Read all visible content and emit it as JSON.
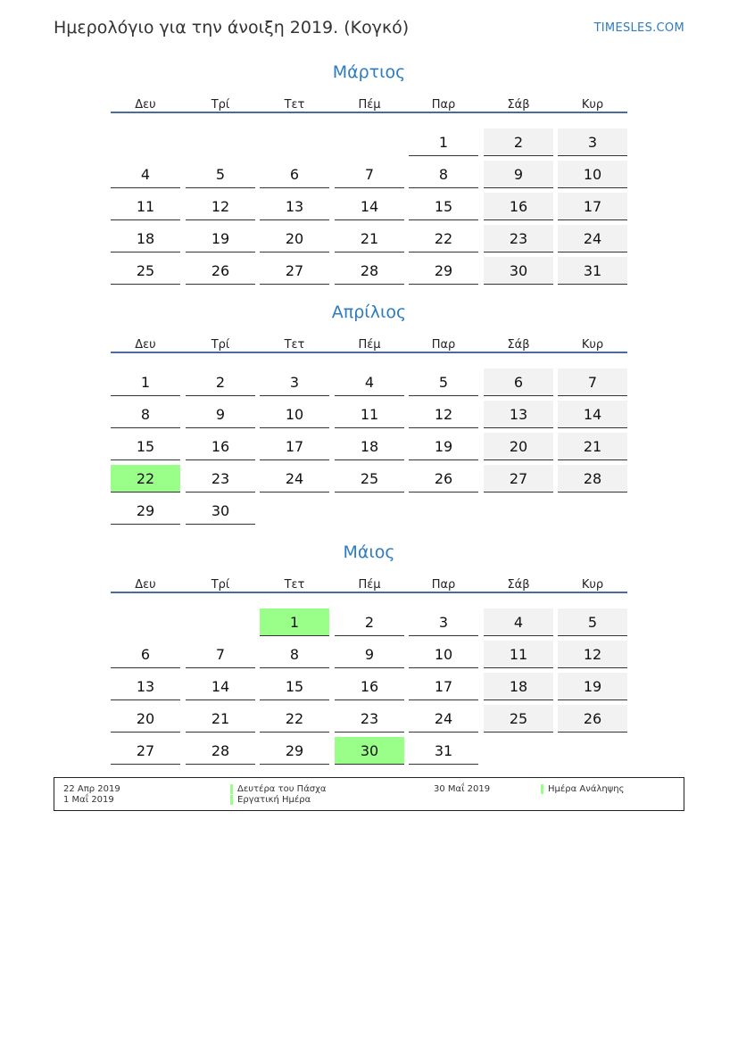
{
  "title": "Ημερολόγιο για την άνοιξη 2019. (Κογκό)",
  "site": "TIMESLES.COM",
  "weekdays": [
    "Δευ",
    "Τρί",
    "Τετ",
    "Πέμ",
    "Παρ",
    "Σάβ",
    "Κυρ"
  ],
  "colors": {
    "accent": "#2e7bbf",
    "weekend": "#f2f2f2",
    "holiday": "#99ff88"
  },
  "months": [
    {
      "name": "Μάρτιος",
      "weeks": [
        [
          null,
          null,
          null,
          null,
          1,
          2,
          3
        ],
        [
          4,
          5,
          6,
          7,
          8,
          9,
          10
        ],
        [
          11,
          12,
          13,
          14,
          15,
          16,
          17
        ],
        [
          18,
          19,
          20,
          21,
          22,
          23,
          24
        ],
        [
          25,
          26,
          27,
          28,
          29,
          30,
          31
        ]
      ],
      "holidays": []
    },
    {
      "name": "Απρίλιος",
      "weeks": [
        [
          1,
          2,
          3,
          4,
          5,
          6,
          7
        ],
        [
          8,
          9,
          10,
          11,
          12,
          13,
          14
        ],
        [
          15,
          16,
          17,
          18,
          19,
          20,
          21
        ],
        [
          22,
          23,
          24,
          25,
          26,
          27,
          28
        ],
        [
          29,
          30,
          null,
          null,
          null,
          null,
          null
        ]
      ],
      "holidays": [
        22
      ]
    },
    {
      "name": "Μάιος",
      "weeks": [
        [
          null,
          null,
          1,
          2,
          3,
          4,
          5
        ],
        [
          6,
          7,
          8,
          9,
          10,
          11,
          12
        ],
        [
          13,
          14,
          15,
          16,
          17,
          18,
          19
        ],
        [
          20,
          21,
          22,
          23,
          24,
          25,
          26
        ],
        [
          27,
          28,
          29,
          30,
          31,
          null,
          null
        ]
      ],
      "holidays": [
        1,
        30
      ]
    }
  ],
  "legend": [
    {
      "date": "22 Απρ 2019",
      "name": "Δευτέρα του Πάσχα"
    },
    {
      "date": "1 Μαΐ 2019",
      "name": "Εργατική Ημέρα"
    },
    {
      "date": "30 Μαΐ 2019",
      "name": "Ημέρα Ανάληψης"
    }
  ]
}
